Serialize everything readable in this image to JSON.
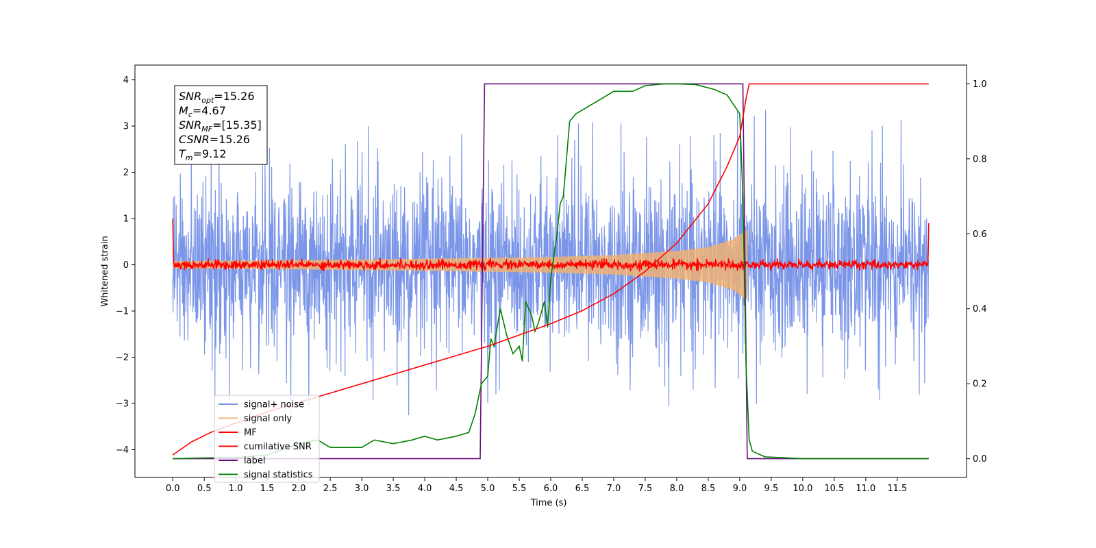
{
  "chart_data": {
    "type": "line",
    "xlabel": "Time (s)",
    "ylabel": "Whitened strain",
    "xlim": [
      -0.6,
      12.6
    ],
    "ylim": [
      -4.6,
      4.32
    ],
    "y2lim": [
      -0.05,
      1.05
    ],
    "x_ticks": [
      "0.0",
      "0.5",
      "1.0",
      "1.5",
      "2.0",
      "2.5",
      "3.0",
      "3.5",
      "4.0",
      "4.5",
      "5.0",
      "5.5",
      "6.0",
      "6.5",
      "7.0",
      "7.5",
      "8.0",
      "8.5",
      "9.0",
      "9.5",
      "10.0",
      "10.5",
      "11.0",
      "11.5"
    ],
    "y_ticks": [
      "4",
      "3",
      "2",
      "1",
      "0",
      "−1",
      "−2",
      "−3",
      "−4"
    ],
    "y2_ticks": [
      "0.0",
      "0.2",
      "0.4",
      "0.6",
      "0.8",
      "1.0"
    ],
    "grid": false,
    "legend_position": "lower-left",
    "annotation": {
      "lines": [
        {
          "var": "SNR",
          "sub": "opt",
          "value": "=15.26"
        },
        {
          "var": "M",
          "sub": "c",
          "value": "=4.67"
        },
        {
          "var": "SNR",
          "sub": "MF",
          "value": "=[15.35]"
        },
        {
          "var": "CSNR",
          "sub": "",
          "value": "=15.26"
        },
        {
          "var": "T",
          "sub": "m",
          "value": "=9.12"
        }
      ]
    },
    "series": [
      {
        "name": "signal+ noise",
        "color": "#7b96e8",
        "kind": "noise",
        "x_range": [
          0,
          12
        ],
        "envelope": 2.3,
        "spike_max": 3.95
      },
      {
        "name": "signal only",
        "color": "#f5b26b",
        "kind": "chirp",
        "x_range": [
          0,
          9.12
        ],
        "amplitude_points": [
          [
            0,
            0.08
          ],
          [
            2,
            0.1
          ],
          [
            4,
            0.13
          ],
          [
            6,
            0.17
          ],
          [
            7,
            0.21
          ],
          [
            8,
            0.3
          ],
          [
            8.5,
            0.38
          ],
          [
            8.9,
            0.55
          ],
          [
            9.1,
            0.75
          ]
        ]
      },
      {
        "name": "MF",
        "color": "#ff0000",
        "kind": "mf",
        "x_range": [
          0,
          12
        ],
        "noise_amp": 0.05,
        "edge_values": [
          1.0,
          0.9
        ]
      },
      {
        "name": "cumilative SNR",
        "color": "#ff0000",
        "axis": "right",
        "points": [
          [
            0,
            0.01
          ],
          [
            0.3,
            0.045
          ],
          [
            0.6,
            0.07
          ],
          [
            1,
            0.095
          ],
          [
            1.5,
            0.125
          ],
          [
            2,
            0.15
          ],
          [
            2.5,
            0.175
          ],
          [
            3,
            0.2
          ],
          [
            3.5,
            0.225
          ],
          [
            4,
            0.25
          ],
          [
            4.5,
            0.275
          ],
          [
            5,
            0.3
          ],
          [
            5.5,
            0.33
          ],
          [
            6,
            0.36
          ],
          [
            6.5,
            0.395
          ],
          [
            7,
            0.44
          ],
          [
            7.5,
            0.5
          ],
          [
            8,
            0.575
          ],
          [
            8.5,
            0.68
          ],
          [
            8.8,
            0.78
          ],
          [
            9.0,
            0.86
          ],
          [
            9.1,
            0.96
          ],
          [
            9.15,
            1.0
          ],
          [
            12,
            1.0
          ]
        ]
      },
      {
        "name": "label",
        "color": "#6a0d80",
        "axis": "right",
        "points": [
          [
            0,
            0
          ],
          [
            4.88,
            0
          ],
          [
            4.95,
            1
          ],
          [
            9.05,
            1
          ],
          [
            9.12,
            0
          ],
          [
            12,
            0
          ]
        ]
      },
      {
        "name": "signal statistics",
        "color": "#008000",
        "axis": "right",
        "points": [
          [
            0,
            0.0
          ],
          [
            0.5,
            0.002
          ],
          [
            1.0,
            0.003
          ],
          [
            1.5,
            0.01
          ],
          [
            2.0,
            0.04
          ],
          [
            2.3,
            0.05
          ],
          [
            2.5,
            0.03
          ],
          [
            2.7,
            0.03
          ],
          [
            3.0,
            0.03
          ],
          [
            3.2,
            0.05
          ],
          [
            3.5,
            0.04
          ],
          [
            3.8,
            0.05
          ],
          [
            4.0,
            0.06
          ],
          [
            4.2,
            0.05
          ],
          [
            4.5,
            0.06
          ],
          [
            4.7,
            0.07
          ],
          [
            4.8,
            0.12
          ],
          [
            4.9,
            0.2
          ],
          [
            5.0,
            0.22
          ],
          [
            5.05,
            0.32
          ],
          [
            5.1,
            0.3
          ],
          [
            5.2,
            0.4
          ],
          [
            5.3,
            0.33
          ],
          [
            5.4,
            0.28
          ],
          [
            5.5,
            0.3
          ],
          [
            5.55,
            0.26
          ],
          [
            5.6,
            0.42
          ],
          [
            5.7,
            0.38
          ],
          [
            5.75,
            0.34
          ],
          [
            5.8,
            0.36
          ],
          [
            5.9,
            0.42
          ],
          [
            5.95,
            0.35
          ],
          [
            6.0,
            0.48
          ],
          [
            6.1,
            0.6
          ],
          [
            6.15,
            0.68
          ],
          [
            6.2,
            0.7
          ],
          [
            6.3,
            0.9
          ],
          [
            6.4,
            0.92
          ],
          [
            6.5,
            0.93
          ],
          [
            6.8,
            0.96
          ],
          [
            7.0,
            0.98
          ],
          [
            7.3,
            0.98
          ],
          [
            7.5,
            0.995
          ],
          [
            7.8,
            1.0
          ],
          [
            8.0,
            1.0
          ],
          [
            8.3,
            0.998
          ],
          [
            8.6,
            0.985
          ],
          [
            8.8,
            0.97
          ],
          [
            9.0,
            0.92
          ],
          [
            9.05,
            0.7
          ],
          [
            9.1,
            0.25
          ],
          [
            9.15,
            0.05
          ],
          [
            9.2,
            0.02
          ],
          [
            9.4,
            0.005
          ],
          [
            10,
            0.0
          ],
          [
            12,
            0.0
          ]
        ]
      }
    ]
  }
}
